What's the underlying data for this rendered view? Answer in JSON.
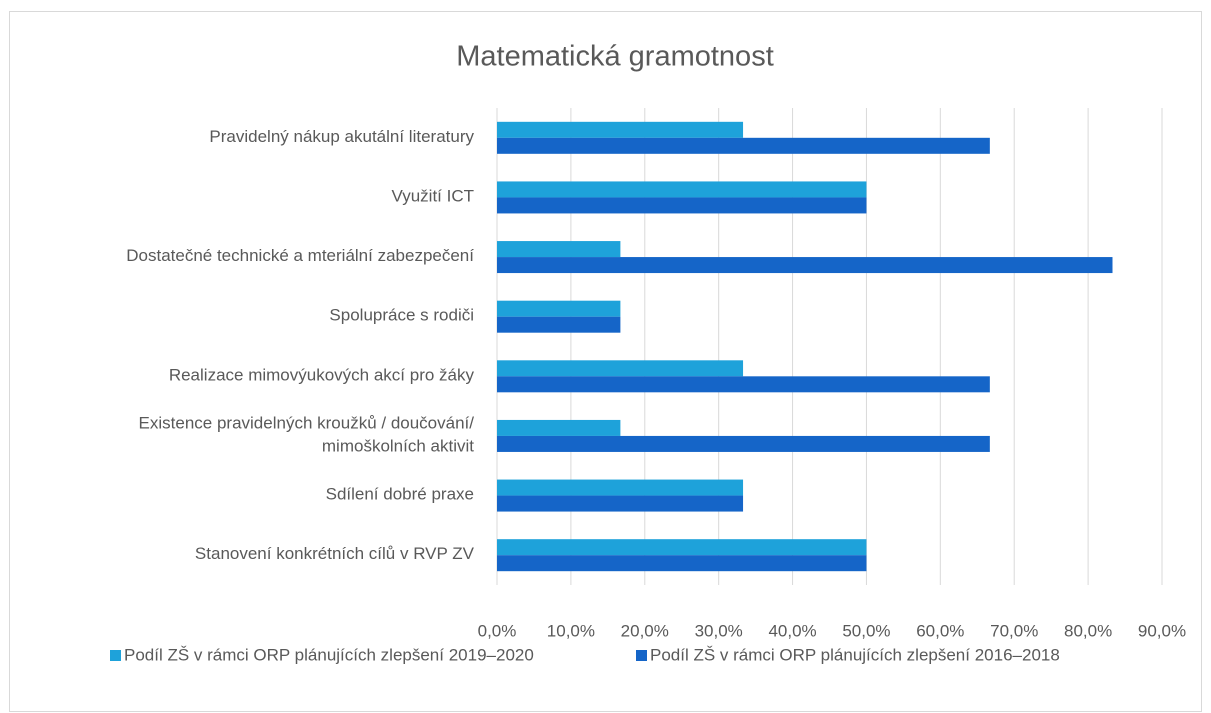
{
  "chart_data": {
    "type": "bar",
    "orientation": "horizontal",
    "title": "Matematická gramotnost",
    "categories": [
      "Pravidelný nákup akutální literatury",
      "Využití ICT",
      "Dostatečné technické a mteriální zabezpečení",
      "Spolupráce s rodiči",
      "Realizace mimovýukových akcí pro žáky",
      "Existence pravidelných kroužků / doučování/\nmimoškolních aktivit",
      "Sdílení dobré praxe",
      "Stanovení konkrétních cílů v RVP ZV"
    ],
    "series": [
      {
        "name": "Podíl ZŠ v rámci ORP plánujících zlepšení 2019–2020",
        "color": "#1ea2da",
        "values": [
          33.3,
          50,
          16.7,
          16.7,
          33.3,
          16.7,
          33.3,
          50
        ]
      },
      {
        "name": "Podíl ZŠ v rámci ORP plánujících zlepšení 2016–2018",
        "color": "#1565c8",
        "values": [
          66.7,
          50,
          83.3,
          16.7,
          66.7,
          66.7,
          33.3,
          50
        ]
      }
    ],
    "xlim": [
      0,
      90
    ],
    "xticks": [
      {
        "value": 0,
        "label": "0,0%"
      },
      {
        "value": 10,
        "label": "10,0%"
      },
      {
        "value": 20,
        "label": "20,0%"
      },
      {
        "value": 30,
        "label": "30,0%"
      },
      {
        "value": 40,
        "label": "40,0%"
      },
      {
        "value": 50,
        "label": "50,0%"
      },
      {
        "value": 60,
        "label": "60,0%"
      },
      {
        "value": 70,
        "label": "70,0%"
      },
      {
        "value": 80,
        "label": "80,0%"
      },
      {
        "value": 90,
        "label": "90,0%"
      }
    ],
    "grid": true,
    "legend": "bottom"
  }
}
